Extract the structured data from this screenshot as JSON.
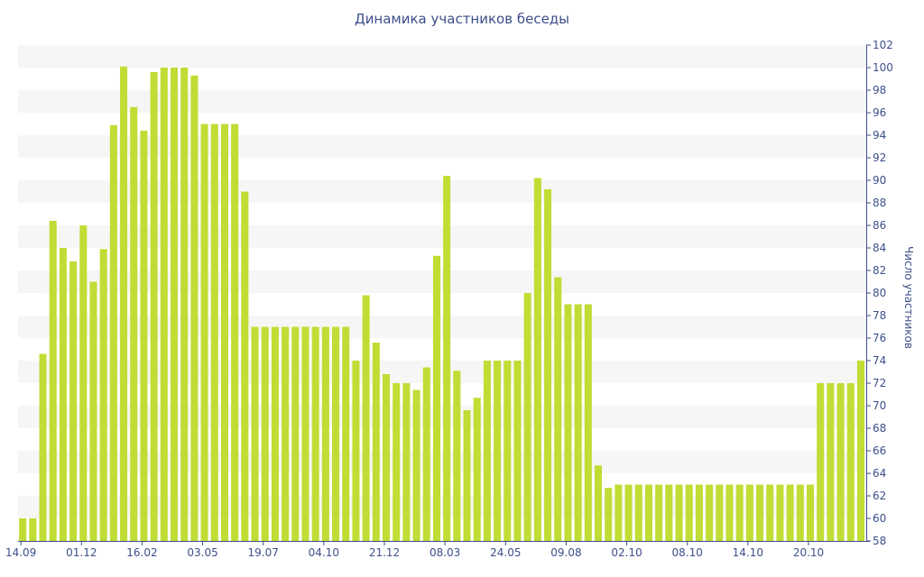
{
  "chart_data": {
    "type": "bar",
    "title": "Динамика участников беседы",
    "xlabel": "",
    "ylabel": "Число участников",
    "ylim": [
      58,
      102
    ],
    "ytick_step": 2,
    "grid": "horizontal bands",
    "bar_color": "#c0dd35",
    "band_color": "#f6f6f6",
    "text_color": "#3d4f8a",
    "values": [
      60,
      60,
      74.6,
      86.4,
      84,
      82.8,
      86,
      81,
      83.9,
      94.9,
      100.1,
      96.5,
      94.4,
      99.6,
      100,
      100,
      100,
      99.3,
      95,
      95,
      95,
      95,
      89,
      77,
      77,
      77,
      77,
      77,
      77,
      77,
      77,
      77,
      77,
      74,
      79.8,
      75.6,
      72.8,
      72,
      72,
      71.4,
      73.4,
      83.3,
      90.4,
      73.1,
      69.6,
      70.7,
      74,
      74,
      74,
      74,
      80,
      90.2,
      89.2,
      81.4,
      79,
      79,
      79,
      64.7,
      62.7,
      63,
      63,
      63,
      63,
      63,
      63,
      63,
      63,
      63,
      63,
      63,
      63,
      63,
      63,
      63,
      63,
      63,
      63,
      63,
      63,
      72,
      72,
      72,
      72,
      74
    ],
    "x_tick_labels": [
      {
        "index": 0,
        "label": "14.09"
      },
      {
        "index": 6,
        "label": "01.12"
      },
      {
        "index": 12,
        "label": "16.02"
      },
      {
        "index": 18,
        "label": "03.05"
      },
      {
        "index": 24,
        "label": "19.07"
      },
      {
        "index": 30,
        "label": "04.10"
      },
      {
        "index": 36,
        "label": "21.12"
      },
      {
        "index": 42,
        "label": "08.03"
      },
      {
        "index": 48,
        "label": "24.05"
      },
      {
        "index": 54,
        "label": "09.08"
      },
      {
        "index": 60,
        "label": "02.10"
      },
      {
        "index": 66,
        "label": "08.10"
      },
      {
        "index": 72,
        "label": "14.10"
      },
      {
        "index": 78,
        "label": "20.10"
      }
    ]
  }
}
